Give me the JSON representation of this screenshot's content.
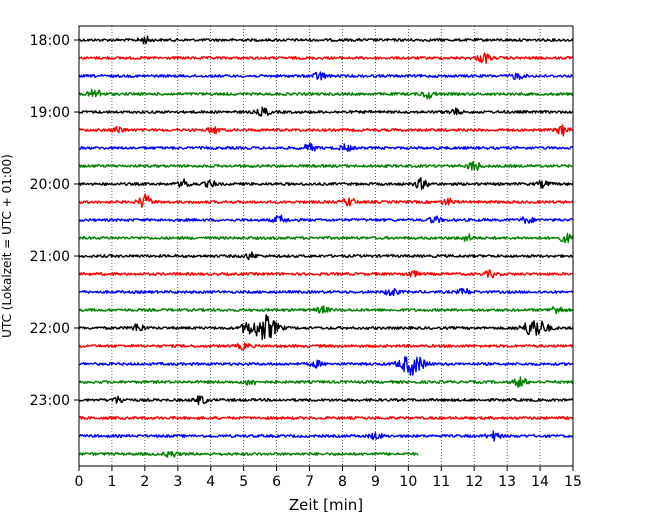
{
  "chart_data": {
    "type": "line",
    "title": "",
    "xlabel": "Zeit  [min]",
    "ylabel": "UTC (Lokalzeit = UTC + 01:00)",
    "xlim": [
      0,
      15
    ],
    "x_ticks": [
      0,
      1,
      2,
      3,
      4,
      5,
      6,
      7,
      8,
      9,
      10,
      11,
      12,
      13,
      14,
      15
    ],
    "y_tick_labels": [
      "18:00",
      "19:00",
      "20:00",
      "21:00",
      "22:00",
      "23:00"
    ],
    "y_tick_trace_index": [
      0,
      4,
      8,
      12,
      16,
      20
    ],
    "grid": "vertical dotted",
    "trace_minutes": 15,
    "trace_colors": [
      "#000000",
      "#ff0000",
      "#0000ff",
      "#008000"
    ],
    "traces": [
      {
        "start": "18:00",
        "end_min": 15,
        "events": [
          {
            "t": 2.0,
            "amp": 3
          }
        ]
      },
      {
        "start": "18:15",
        "end_min": 15,
        "events": [
          {
            "t": 12.3,
            "amp": 5
          }
        ]
      },
      {
        "start": "18:30",
        "end_min": 15,
        "events": [
          {
            "t": 7.3,
            "amp": 4
          },
          {
            "t": 13.3,
            "amp": 3
          }
        ]
      },
      {
        "start": "18:45",
        "end_min": 15,
        "events": [
          {
            "t": 0.5,
            "amp": 5
          },
          {
            "t": 10.6,
            "amp": 4
          }
        ]
      },
      {
        "start": "19:00",
        "end_min": 15,
        "events": [
          {
            "t": 5.6,
            "amp": 4
          },
          {
            "t": 11.4,
            "amp": 3
          }
        ]
      },
      {
        "start": "19:15",
        "end_min": 15,
        "events": [
          {
            "t": 1.2,
            "amp": 3
          },
          {
            "t": 4.1,
            "amp": 3
          },
          {
            "t": 14.7,
            "amp": 5
          }
        ]
      },
      {
        "start": "19:30",
        "end_min": 15,
        "events": [
          {
            "t": 7.0,
            "amp": 4
          },
          {
            "t": 8.1,
            "amp": 3
          }
        ]
      },
      {
        "start": "19:45",
        "end_min": 15,
        "events": [
          {
            "t": 12.0,
            "amp": 5
          }
        ]
      },
      {
        "start": "20:00",
        "end_min": 15,
        "events": [
          {
            "t": 3.2,
            "amp": 4
          },
          {
            "t": 4.0,
            "amp": 3
          },
          {
            "t": 10.4,
            "amp": 5
          },
          {
            "t": 14.1,
            "amp": 3
          }
        ]
      },
      {
        "start": "20:15",
        "end_min": 15,
        "events": [
          {
            "t": 2.0,
            "amp": 7
          },
          {
            "t": 8.2,
            "amp": 4
          },
          {
            "t": 11.2,
            "amp": 3
          }
        ]
      },
      {
        "start": "20:30",
        "end_min": 15,
        "events": [
          {
            "t": 6.1,
            "amp": 4
          },
          {
            "t": 10.8,
            "amp": 3
          },
          {
            "t": 13.6,
            "amp": 3
          }
        ]
      },
      {
        "start": "20:45",
        "end_min": 15,
        "events": [
          {
            "t": 11.8,
            "amp": 3
          },
          {
            "t": 14.8,
            "amp": 4
          }
        ]
      },
      {
        "start": "21:00",
        "end_min": 15,
        "events": [
          {
            "t": 5.2,
            "amp": 3
          }
        ]
      },
      {
        "start": "21:15",
        "end_min": 15,
        "events": [
          {
            "t": 10.1,
            "amp": 3
          },
          {
            "t": 12.5,
            "amp": 3
          }
        ]
      },
      {
        "start": "21:30",
        "end_min": 15,
        "events": [
          {
            "t": 9.5,
            "amp": 4
          },
          {
            "t": 11.7,
            "amp": 3
          }
        ]
      },
      {
        "start": "21:45",
        "end_min": 15,
        "events": [
          {
            "t": 7.4,
            "amp": 3
          },
          {
            "t": 14.5,
            "amp": 4
          }
        ]
      },
      {
        "start": "22:00",
        "end_min": 15,
        "events": [
          {
            "t": 1.8,
            "amp": 4
          },
          {
            "t": 5.1,
            "amp": 5
          },
          {
            "t": 5.65,
            "amp": 12
          },
          {
            "t": 13.85,
            "amp": 9
          }
        ]
      },
      {
        "start": "22:15",
        "end_min": 15,
        "events": [
          {
            "t": 5.0,
            "amp": 3
          }
        ]
      },
      {
        "start": "22:30",
        "end_min": 15,
        "events": [
          {
            "t": 7.2,
            "amp": 3
          },
          {
            "t": 10.1,
            "amp": 10
          }
        ]
      },
      {
        "start": "22:45",
        "end_min": 15,
        "events": [
          {
            "t": 5.2,
            "amp": 3
          },
          {
            "t": 13.4,
            "amp": 5
          }
        ]
      },
      {
        "start": "23:00",
        "end_min": 15,
        "events": [
          {
            "t": 1.2,
            "amp": 3
          },
          {
            "t": 3.7,
            "amp": 4
          }
        ]
      },
      {
        "start": "23:15",
        "end_min": 15,
        "events": []
      },
      {
        "start": "23:30",
        "end_min": 15,
        "events": [
          {
            "t": 9.0,
            "amp": 3
          },
          {
            "t": 12.6,
            "amp": 4
          }
        ]
      },
      {
        "start": "23:45",
        "end_min": 10.3,
        "events": [
          {
            "t": 2.8,
            "amp": 3
          }
        ]
      }
    ]
  }
}
